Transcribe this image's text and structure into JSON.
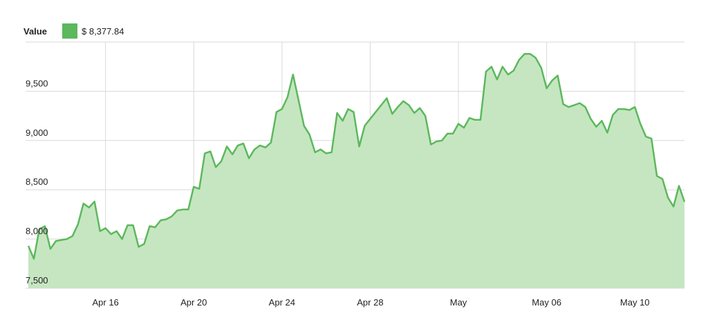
{
  "chart_data": {
    "type": "area",
    "legend_value": "$ 8,377.84",
    "categories": [
      null,
      null,
      null,
      null,
      null,
      null,
      null,
      null,
      null,
      null,
      null,
      null,
      null,
      null,
      "Apr 16",
      null,
      null,
      null,
      null,
      null,
      null,
      null,
      null,
      null,
      null,
      null,
      null,
      null,
      null,
      null,
      "Apr 20",
      null,
      null,
      null,
      null,
      null,
      null,
      null,
      null,
      null,
      null,
      null,
      null,
      null,
      null,
      null,
      "Apr 24",
      null,
      null,
      null,
      null,
      null,
      null,
      null,
      null,
      null,
      null,
      null,
      null,
      null,
      null,
      null,
      "Apr 28",
      null,
      null,
      null,
      null,
      null,
      null,
      null,
      null,
      null,
      null,
      null,
      null,
      null,
      null,
      null,
      "May",
      null,
      null,
      null,
      null,
      null,
      null,
      null,
      null,
      null,
      null,
      null,
      null,
      null,
      null,
      null,
      "May 06",
      null,
      null,
      null,
      null,
      null,
      null,
      null,
      null,
      null,
      null,
      null,
      null,
      null,
      null,
      null,
      "May 10",
      null,
      null,
      null,
      null,
      null,
      null,
      null,
      null,
      null
    ],
    "series": [
      {
        "name": "Value",
        "color": "#5cb85c",
        "fill": "#c5e6c1",
        "values": [
          7930,
          7800,
          8100,
          8130,
          7900,
          7980,
          7990,
          8000,
          8030,
          8150,
          8360,
          8320,
          8380,
          8080,
          8110,
          8050,
          8080,
          8000,
          8140,
          8140,
          7920,
          7950,
          8130,
          8120,
          8190,
          8200,
          8230,
          8290,
          8300,
          8300,
          8530,
          8510,
          8870,
          8890,
          8730,
          8790,
          8940,
          8860,
          8950,
          8970,
          8820,
          8910,
          8950,
          8930,
          8980,
          9290,
          9320,
          9440,
          9670,
          9410,
          9150,
          9060,
          8880,
          8910,
          8870,
          8880,
          9280,
          9200,
          9320,
          9290,
          8940,
          9150,
          9220,
          9290,
          9360,
          9430,
          9270,
          9340,
          9400,
          9360,
          9280,
          9330,
          9250,
          8960,
          8990,
          9000,
          9070,
          9070,
          9170,
          9130,
          9230,
          9210,
          9210,
          9700,
          9750,
          9620,
          9750,
          9670,
          9710,
          9820,
          9880,
          9880,
          9840,
          9740,
          9530,
          9610,
          9660,
          9370,
          9340,
          9360,
          9380,
          9340,
          9220,
          9140,
          9200,
          9080,
          9260,
          9320,
          9320,
          9310,
          9340,
          9170,
          9040,
          9020,
          8640,
          8610,
          8420,
          8330,
          8540,
          8377.84
        ]
      }
    ],
    "ylim": [
      7500,
      10000
    ],
    "yticks": [
      {
        "value": 7500,
        "label": "7,500"
      },
      {
        "value": 8000,
        "label": "8,000"
      },
      {
        "value": 8500,
        "label": "8,500"
      },
      {
        "value": 9000,
        "label": "9,000"
      },
      {
        "value": 9500,
        "label": "9,500"
      }
    ],
    "grid": true
  }
}
